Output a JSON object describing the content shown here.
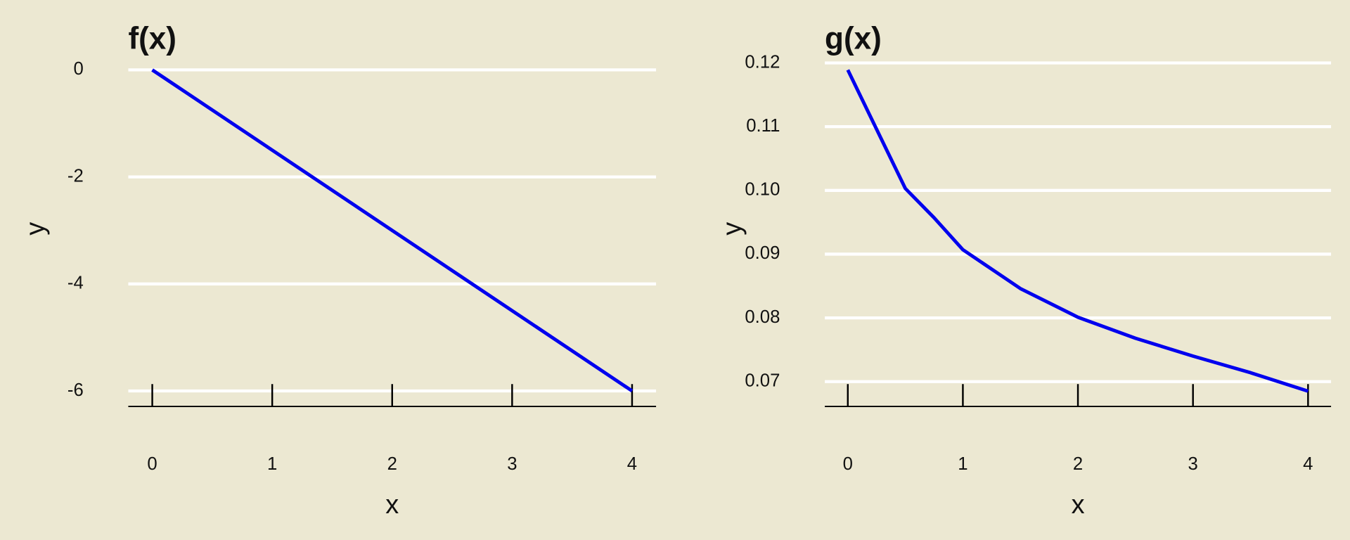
{
  "chart_data": [
    {
      "type": "line",
      "title": "f(x)",
      "x_label": "x",
      "y_label": "y",
      "x": [
        0,
        4
      ],
      "values": [
        0,
        -6
      ],
      "color": "#0000ee",
      "xlim": [
        -0.2,
        4.2
      ],
      "xticks": [
        0,
        1,
        2,
        3,
        4
      ],
      "ylim": [
        -6.29,
        0.13
      ],
      "yticks": [
        0,
        -2,
        -4,
        -6
      ],
      "grid": true
    },
    {
      "type": "line",
      "title": "g(x)",
      "x_label": "x",
      "y_label": "y",
      "x": [
        0,
        0.25,
        0.5,
        0.75,
        1,
        1.5,
        2,
        2.5,
        3,
        3.5,
        4
      ],
      "values": [
        0.1189,
        0.1096,
        0.1003,
        0.0957,
        0.0907,
        0.0846,
        0.0801,
        0.0768,
        0.074,
        0.0714,
        0.0685
      ],
      "color": "#0000ee",
      "xlim": [
        -0.2,
        4.2
      ],
      "xticks": [
        0,
        1,
        2,
        3,
        4
      ],
      "ylim": [
        0.0661,
        0.12
      ],
      "yticks": [
        0.12,
        0.11,
        {
          "value": 0.1,
          "label": "0.10"
        },
        0.09,
        0.08,
        0.07
      ],
      "grid": true
    }
  ]
}
